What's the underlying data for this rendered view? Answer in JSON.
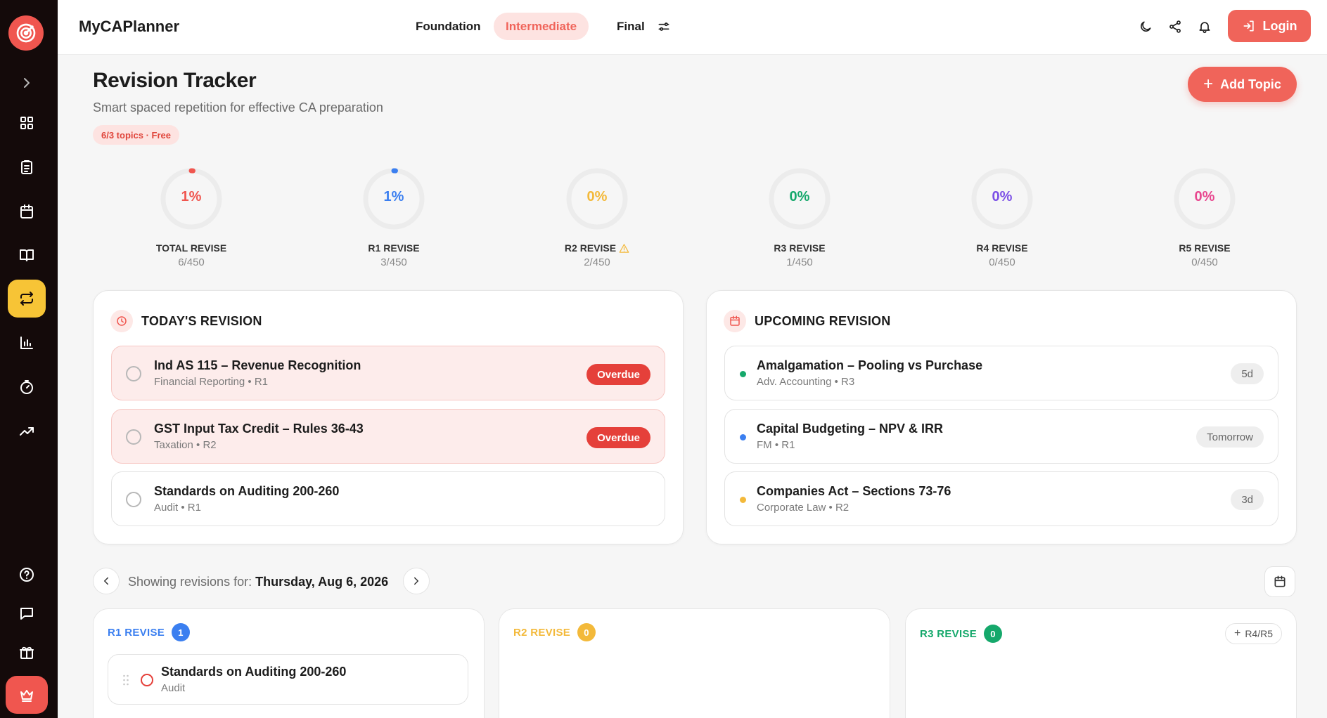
{
  "app": {
    "brand": "MyCAPlanner"
  },
  "nav": {
    "tabs": [
      {
        "label": "Foundation",
        "active": false
      },
      {
        "label": "Intermediate",
        "active": true
      },
      {
        "label": "Final",
        "active": false
      }
    ]
  },
  "header": {
    "login_label": "Login"
  },
  "page": {
    "title": "Revision Tracker",
    "subtitle": "Smart spaced repetition for effective CA preparation",
    "plan_badge": "6/3 topics · Free",
    "add_topic_label": "Add Topic"
  },
  "stats": [
    {
      "label": "TOTAL REVISE",
      "percent_text": "1%",
      "percent": 1,
      "count": "6/450",
      "color": "#f0564f",
      "warning": false
    },
    {
      "label": "R1 REVISE",
      "percent_text": "1%",
      "percent": 1,
      "count": "3/450",
      "color": "#3b7ff0",
      "warning": false
    },
    {
      "label": "R2 REVISE",
      "percent_text": "0%",
      "percent": 0,
      "count": "2/450",
      "color": "#f3b93a",
      "warning": true
    },
    {
      "label": "R3 REVISE",
      "percent_text": "0%",
      "percent": 0,
      "count": "1/450",
      "color": "#15a86b",
      "warning": false
    },
    {
      "label": "R4 REVISE",
      "percent_text": "0%",
      "percent": 0,
      "count": "0/450",
      "color": "#7b4fe6",
      "warning": false
    },
    {
      "label": "R5 REVISE",
      "percent_text": "0%",
      "percent": 0,
      "count": "0/450",
      "color": "#e8478f",
      "warning": false
    }
  ],
  "today": {
    "heading": "TODAY'S REVISION",
    "items": [
      {
        "title": "Ind AS 115 – Revenue Recognition",
        "meta": "Financial Reporting • R1",
        "tag": "Overdue"
      },
      {
        "title": "GST Input Tax Credit – Rules 36-43",
        "meta": "Taxation • R2",
        "tag": "Overdue"
      },
      {
        "title": "Standards on Auditing 200-260",
        "meta": "Audit • R1",
        "tag": ""
      }
    ]
  },
  "upcoming": {
    "heading": "UPCOMING REVISION",
    "items": [
      {
        "title": "Amalgamation – Pooling vs Purchase",
        "meta": "Adv. Accounting • R3",
        "when": "5d",
        "dot": "#15a86b"
      },
      {
        "title": "Capital Budgeting – NPV & IRR",
        "meta": "FM • R1",
        "when": "Tomorrow",
        "dot": "#3b7ff0"
      },
      {
        "title": "Companies Act – Sections 73-76",
        "meta": "Corporate Law • R2",
        "when": "3d",
        "dot": "#f3b93a"
      }
    ]
  },
  "date_nav": {
    "prefix": "Showing revisions for:",
    "date": "Thursday, Aug 6, 2026"
  },
  "columns": [
    {
      "label": "R1 REVISE",
      "count": "1",
      "color": "#3b7ff0",
      "items": [
        {
          "title": "Standards on Auditing 200-260",
          "meta": "Audit"
        }
      ]
    },
    {
      "label": "R2 REVISE",
      "count": "0",
      "color": "#f3b93a",
      "items": []
    },
    {
      "label": "R3 REVISE",
      "count": "0",
      "color": "#15a86b",
      "items": [],
      "extra_button": "R4/R5"
    }
  ]
}
